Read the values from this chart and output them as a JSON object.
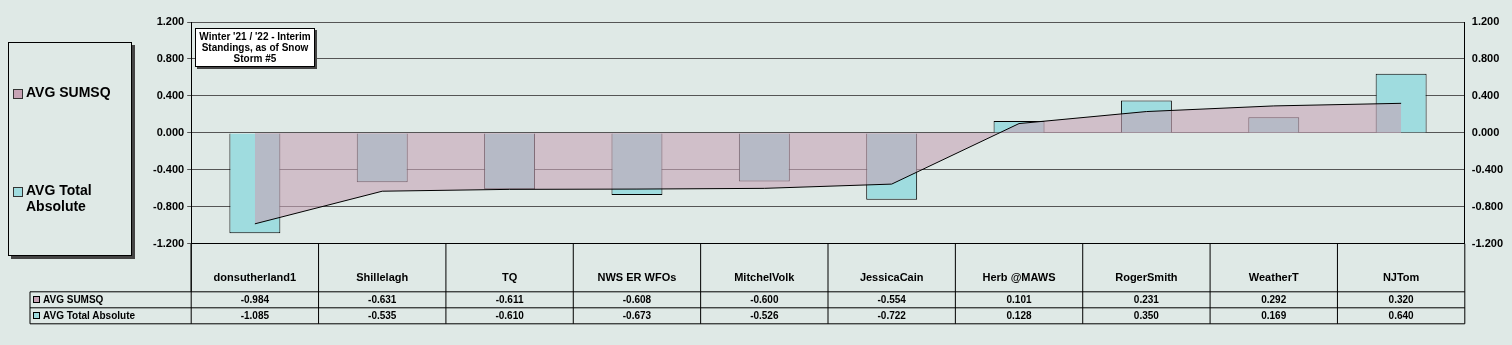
{
  "chart_data": {
    "type": "bar",
    "title": "Winter '21 / '22 - Interim Standings, as of Snow Storm #5",
    "categories": [
      "donsutherland1",
      "Shillelagh",
      "TQ",
      "NWS ER WFOs",
      "MitchelVolk",
      "JessicaCain",
      "Herb @MAWS",
      "RogerSmith",
      "WeatherT",
      "NJTom"
    ],
    "series": [
      {
        "name": "AVG SUMSQ",
        "type": "area",
        "color": "#c7a3b5",
        "values": [
          -0.984,
          -0.631,
          -0.611,
          -0.608,
          -0.6,
          -0.554,
          0.101,
          0.231,
          0.292,
          0.32
        ],
        "value_labels": [
          "-0.984",
          "-0.631",
          "-0.611",
          "-0.608",
          "-0.600",
          "-0.554",
          "0.101",
          "0.231",
          "0.292",
          "0.320"
        ]
      },
      {
        "name": "AVG Total Absolute",
        "color": "#9fdcdf",
        "values": [
          -1.085,
          -0.535,
          -0.61,
          -0.673,
          -0.526,
          -0.722,
          0.128,
          0.35,
          0.169,
          0.64
        ],
        "value_labels": [
          "-1.085",
          "-0.535",
          "-0.610",
          "-0.673",
          "-0.526",
          "-0.722",
          "0.128",
          "0.350",
          "0.169",
          "0.640"
        ]
      }
    ],
    "ylim": [
      -1.2,
      1.2
    ],
    "yticks": [
      {
        "value": -1.2,
        "label": "-1.200"
      },
      {
        "value": -0.8,
        "label": "-0.800"
      },
      {
        "value": -0.4,
        "label": "-0.400"
      },
      {
        "value": 0,
        "label": "0.000"
      },
      {
        "value": 0.4,
        "label": "0.400"
      },
      {
        "value": 0.8,
        "label": "0.800"
      },
      {
        "value": 1.2,
        "label": "1.200"
      }
    ],
    "y2lim": [
      -1.2,
      1.2
    ],
    "y2ticks": [
      {
        "value": -1.2,
        "label": "-1.200"
      },
      {
        "value": -0.8,
        "label": "-0.800"
      },
      {
        "value": -0.4,
        "label": "-0.400"
      },
      {
        "value": 0,
        "label": "0.000"
      },
      {
        "value": 0.4,
        "label": "0.400"
      },
      {
        "value": 0.8,
        "label": "0.800"
      },
      {
        "value": 1.2,
        "label": "1.200"
      }
    ],
    "grid": "y",
    "legend": "left"
  }
}
